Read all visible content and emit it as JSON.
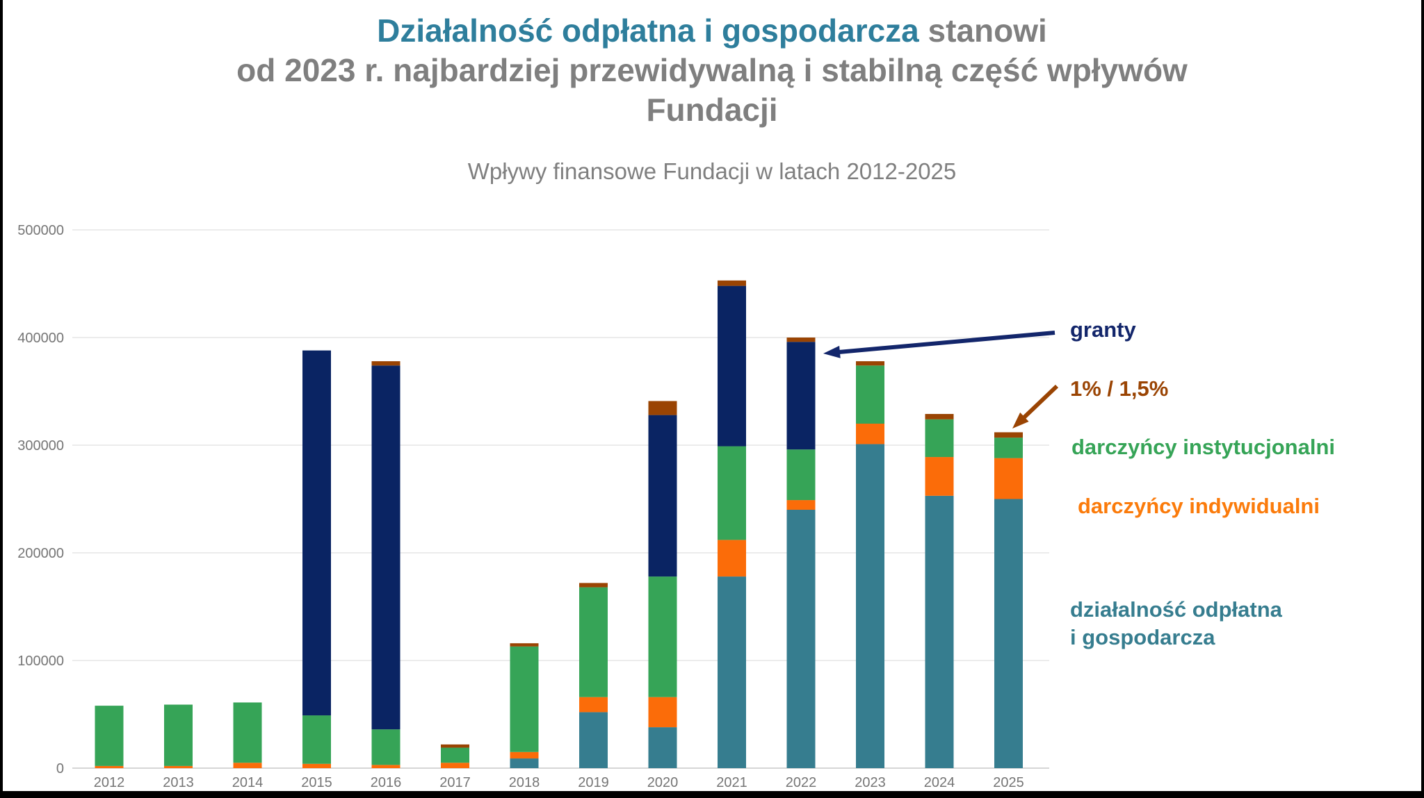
{
  "title": {
    "line1_highlight": "Działalność odpłatna i gospodarcza",
    "line1_rest": " stanowi",
    "line2": "od 2023 r. najbardziej przewidywalną i stabilną część wpływów",
    "line3": "Fundacji",
    "highlight_color": "#2e7e9c",
    "text_color": "#7f7f7f"
  },
  "subtitle": {
    "text": "Wpływy finansowe Fundacji w latach 2012-2025",
    "color": "#7f7f7f"
  },
  "chart_data": {
    "type": "bar",
    "stacked": true,
    "title": "Wpływy finansowe Fundacji w latach 2012-2025",
    "xlabel": "",
    "ylabel": "",
    "ylim": [
      0,
      500000
    ],
    "yticks": [
      0,
      100000,
      200000,
      300000,
      400000,
      500000
    ],
    "ytick_labels": [
      "0",
      "100000",
      "200000",
      "300000",
      "400000",
      "500000"
    ],
    "grid": true,
    "legend_position": "right",
    "categories": [
      "2012",
      "2013",
      "2014",
      "2015",
      "2016",
      "2017",
      "2018",
      "2019",
      "2020",
      "2021",
      "2022",
      "2023",
      "2024",
      "2025"
    ],
    "series": [
      {
        "name": "działalność odpłatna i gospodarcza",
        "color": "#367d8f",
        "values": [
          0,
          0,
          0,
          0,
          0,
          0,
          9000,
          52000,
          38000,
          178000,
          240000,
          301000,
          253000,
          250000
        ]
      },
      {
        "name": "darczyńcy indywidualni",
        "color": "#fb6c09",
        "values": [
          2000,
          2000,
          5000,
          4000,
          3000,
          5000,
          6000,
          14000,
          28000,
          34000,
          9000,
          19000,
          36000,
          38000
        ]
      },
      {
        "name": "darczyńcy instytucjonalni",
        "color": "#36a457",
        "values": [
          56000,
          57000,
          56000,
          45000,
          33000,
          14000,
          98000,
          102000,
          112000,
          87000,
          47000,
          54000,
          35000,
          19000
        ]
      },
      {
        "name": "granty",
        "color": "#0a2463",
        "values": [
          0,
          0,
          0,
          339000,
          338000,
          0,
          0,
          0,
          150000,
          149000,
          100000,
          0,
          0,
          0
        ]
      },
      {
        "name": "1% / 1,5%",
        "color": "#9a4403",
        "values": [
          0,
          0,
          0,
          0,
          4000,
          3000,
          3000,
          4000,
          13000,
          5000,
          4000,
          4000,
          5000,
          5000
        ]
      }
    ],
    "totals": [
      58000,
      59000,
      61000,
      388000,
      378000,
      22000,
      116000,
      172000,
      341000,
      453000,
      400000,
      378000,
      329000,
      312000
    ],
    "axis_text_color": "#757575",
    "gridline_color": "#ececec",
    "zeroline_color": "#d6d6d6"
  },
  "legend": {
    "items": [
      {
        "id": "granty",
        "lines": [
          "granty"
        ],
        "color": "#13266b"
      },
      {
        "id": "procent",
        "lines": [
          "1% / 1,5%"
        ],
        "color": "#9a4403"
      },
      {
        "id": "instytucjonalni",
        "lines": [
          "darczyńcy instytucjonalni"
        ],
        "color": "#36a457"
      },
      {
        "id": "indywidualni",
        "lines": [
          "darczyńcy indywidualni"
        ],
        "color": "#fb7b0b"
      },
      {
        "id": "dzialalnosc",
        "lines": [
          "działalność odpłatna",
          "i gospodarcza"
        ],
        "color": "#367d8f"
      }
    ]
  },
  "annotations": {
    "granty_arrow_color": "#13266b",
    "procent_arrow_color": "#9a4403"
  }
}
